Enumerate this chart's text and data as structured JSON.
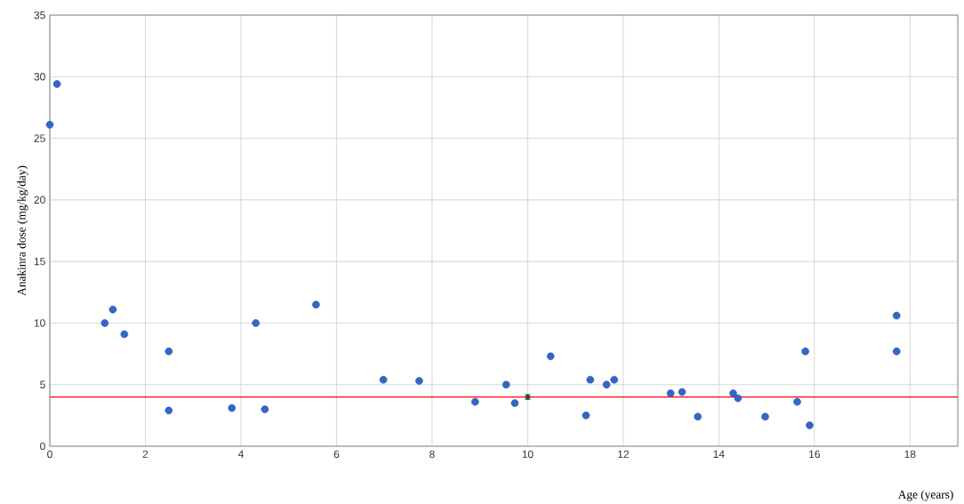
{
  "chart_data": {
    "type": "scatter",
    "xlabel": "Age (years)",
    "ylabel": "Anakinra dose (mg/kg/day)",
    "xlim": [
      0,
      19
    ],
    "ylim": [
      0,
      35
    ],
    "xticks": [
      0,
      2,
      4,
      6,
      8,
      10,
      12,
      14,
      16,
      18
    ],
    "yticks": [
      0,
      5,
      10,
      15,
      20,
      25,
      30,
      35
    ],
    "grid": true,
    "marker": "circle",
    "series": [
      {
        "color": "#3366cc",
        "x": [
          0,
          0.15,
          1.15,
          1.32,
          1.56,
          2.49,
          2.49,
          3.81,
          4.31,
          4.5,
          5.57,
          6.98,
          7.73,
          8.9,
          9.55,
          9.73,
          10.48,
          11.22,
          11.31,
          11.65,
          11.81,
          12.99,
          13.23,
          13.56,
          14.3,
          14.4,
          14.97,
          15.64,
          15.81,
          15.9,
          17.72,
          17.72
        ],
        "values": [
          26.1,
          29.4,
          10.0,
          11.1,
          9.1,
          7.7,
          2.9,
          3.1,
          10.0,
          3.0,
          11.5,
          5.4,
          5.3,
          3.6,
          5.0,
          3.5,
          7.3,
          2.5,
          5.4,
          5.0,
          5.4,
          4.3,
          4.4,
          2.4,
          4.3,
          3.9,
          2.4,
          3.6,
          7.7,
          1.7,
          10.6,
          7.7
        ]
      },
      {
        "color": "#404040",
        "marker": "none",
        "x": [
          10
        ],
        "values": [
          4
        ],
        "errors": [
          0.2
        ]
      }
    ],
    "ref_lines": [
      {
        "axis": "y",
        "value": 4,
        "color": "#ff0000"
      }
    ]
  }
}
